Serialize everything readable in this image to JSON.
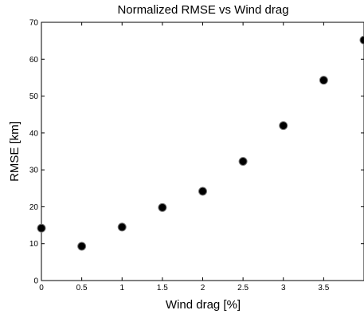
{
  "chart_data": {
    "type": "scatter",
    "title": "Normalized RMSE vs Wind drag",
    "xlabel": "Wind drag [%]",
    "ylabel": "RMSE [km]",
    "xlim": [
      0,
      4.0
    ],
    "ylim": [
      0,
      70
    ],
    "x_ticks": [
      0,
      0.5,
      1,
      1.5,
      2,
      2.5,
      3,
      3.5
    ],
    "x_tick_labels": [
      "0",
      "0.5",
      "1",
      "1.5",
      "2",
      "2.5",
      "3",
      "3.5"
    ],
    "y_ticks": [
      0,
      10,
      20,
      30,
      40,
      50,
      60,
      70
    ],
    "y_tick_labels": [
      "0",
      "10",
      "20",
      "30",
      "40",
      "50",
      "60",
      "70"
    ],
    "grid": false,
    "marker_color": "#000000",
    "series": [
      {
        "x": [
          0,
          0.5,
          1,
          1.5,
          2,
          2.5,
          3,
          3.5,
          4.0
        ],
        "y": [
          14.2,
          9.3,
          14.5,
          19.8,
          24.2,
          32.3,
          42.0,
          54.3,
          65.2
        ]
      }
    ]
  }
}
